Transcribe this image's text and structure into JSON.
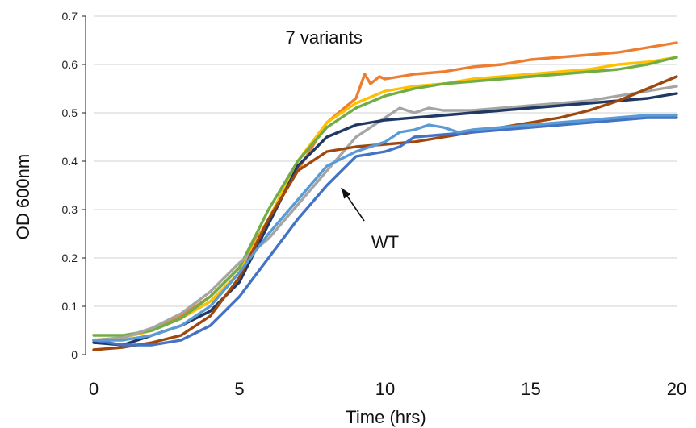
{
  "chart_data": {
    "type": "line",
    "title": "",
    "xlabel": "Time (hrs)",
    "ylabel": "OD 600nm",
    "xlim": [
      0,
      20
    ],
    "ylim": [
      0,
      0.7
    ],
    "x_ticks": [
      0,
      5,
      10,
      15,
      20
    ],
    "x_tick_labels": [
      "0",
      "5",
      "10",
      "15",
      "20"
    ],
    "y_ticks": [
      0,
      0.1,
      0.2,
      0.3,
      0.4,
      0.5,
      0.6,
      0.7
    ],
    "y_tick_labels": [
      "0",
      "0.1",
      "0.2",
      "0.3",
      "0.4",
      "0.5",
      "0.6",
      "0.7"
    ],
    "grid": true,
    "legend": "none",
    "annotations": [
      {
        "text": "7 variants",
        "x": 7.9,
        "y": 0.643
      },
      {
        "text": "WT",
        "x": 10.0,
        "y": 0.22,
        "arrow_to": [
          8.5,
          0.345
        ]
      }
    ],
    "series": [
      {
        "color": "#ED7D31",
        "points": [
          [
            0,
            0.03
          ],
          [
            1,
            0.035
          ],
          [
            2,
            0.05
          ],
          [
            3,
            0.08
          ],
          [
            4,
            0.12
          ],
          [
            5,
            0.18
          ],
          [
            6,
            0.28
          ],
          [
            7,
            0.38
          ],
          [
            8,
            0.48
          ],
          [
            9,
            0.53
          ],
          [
            9.3,
            0.58
          ],
          [
            9.5,
            0.56
          ],
          [
            9.8,
            0.575
          ],
          [
            10,
            0.57
          ],
          [
            11,
            0.58
          ],
          [
            12,
            0.585
          ],
          [
            13,
            0.595
          ],
          [
            14,
            0.6
          ],
          [
            15,
            0.61
          ],
          [
            16,
            0.615
          ],
          [
            17,
            0.62
          ],
          [
            18,
            0.625
          ],
          [
            19,
            0.635
          ],
          [
            20,
            0.645
          ]
        ]
      },
      {
        "color": "#FFC000",
        "points": [
          [
            0,
            0.03
          ],
          [
            1,
            0.035
          ],
          [
            2,
            0.05
          ],
          [
            3,
            0.075
          ],
          [
            4,
            0.11
          ],
          [
            5,
            0.17
          ],
          [
            6,
            0.28
          ],
          [
            7,
            0.4
          ],
          [
            8,
            0.48
          ],
          [
            9,
            0.52
          ],
          [
            10,
            0.545
          ],
          [
            11,
            0.555
          ],
          [
            12,
            0.56
          ],
          [
            13,
            0.57
          ],
          [
            14,
            0.575
          ],
          [
            15,
            0.58
          ],
          [
            16,
            0.585
          ],
          [
            17,
            0.59
          ],
          [
            18,
            0.6
          ],
          [
            19,
            0.605
          ],
          [
            20,
            0.615
          ]
        ]
      },
      {
        "color": "#70AD47",
        "points": [
          [
            0,
            0.04
          ],
          [
            1,
            0.04
          ],
          [
            2,
            0.05
          ],
          [
            3,
            0.075
          ],
          [
            4,
            0.12
          ],
          [
            5,
            0.18
          ],
          [
            6,
            0.3
          ],
          [
            7,
            0.4
          ],
          [
            8,
            0.47
          ],
          [
            9,
            0.51
          ],
          [
            10,
            0.535
          ],
          [
            11,
            0.55
          ],
          [
            12,
            0.56
          ],
          [
            13,
            0.565
          ],
          [
            14,
            0.57
          ],
          [
            15,
            0.575
          ],
          [
            16,
            0.58
          ],
          [
            17,
            0.585
          ],
          [
            18,
            0.59
          ],
          [
            19,
            0.6
          ],
          [
            20,
            0.615
          ]
        ]
      },
      {
        "color": "#A5A5A5",
        "points": [
          [
            0,
            0.03
          ],
          [
            1,
            0.035
          ],
          [
            2,
            0.055
          ],
          [
            3,
            0.085
          ],
          [
            4,
            0.13
          ],
          [
            5,
            0.19
          ],
          [
            6,
            0.24
          ],
          [
            7,
            0.31
          ],
          [
            8,
            0.38
          ],
          [
            9,
            0.45
          ],
          [
            10,
            0.49
          ],
          [
            10.5,
            0.51
          ],
          [
            11,
            0.5
          ],
          [
            11.5,
            0.51
          ],
          [
            12,
            0.505
          ],
          [
            13,
            0.505
          ],
          [
            14,
            0.51
          ],
          [
            15,
            0.515
          ],
          [
            16,
            0.52
          ],
          [
            17,
            0.525
          ],
          [
            18,
            0.535
          ],
          [
            19,
            0.545
          ],
          [
            20,
            0.555
          ]
        ]
      },
      {
        "color": "#203864",
        "points": [
          [
            0,
            0.025
          ],
          [
            1,
            0.02
          ],
          [
            2,
            0.04
          ],
          [
            3,
            0.06
          ],
          [
            4,
            0.09
          ],
          [
            5,
            0.15
          ],
          [
            6,
            0.27
          ],
          [
            7,
            0.39
          ],
          [
            8,
            0.45
          ],
          [
            9,
            0.475
          ],
          [
            10,
            0.485
          ],
          [
            11,
            0.49
          ],
          [
            12,
            0.495
          ],
          [
            13,
            0.5
          ],
          [
            14,
            0.505
          ],
          [
            15,
            0.51
          ],
          [
            16,
            0.515
          ],
          [
            17,
            0.52
          ],
          [
            18,
            0.525
          ],
          [
            19,
            0.53
          ],
          [
            20,
            0.54
          ]
        ]
      },
      {
        "color": "#9E480E",
        "points": [
          [
            0,
            0.01
          ],
          [
            1,
            0.015
          ],
          [
            2,
            0.025
          ],
          [
            3,
            0.04
          ],
          [
            4,
            0.08
          ],
          [
            5,
            0.16
          ],
          [
            6,
            0.28
          ],
          [
            7,
            0.38
          ],
          [
            8,
            0.42
          ],
          [
            9,
            0.43
          ],
          [
            10,
            0.435
          ],
          [
            11,
            0.44
          ],
          [
            12,
            0.45
          ],
          [
            13,
            0.46
          ],
          [
            14,
            0.47
          ],
          [
            15,
            0.48
          ],
          [
            16,
            0.49
          ],
          [
            17,
            0.505
          ],
          [
            18,
            0.525
          ],
          [
            19,
            0.55
          ],
          [
            20,
            0.575
          ]
        ]
      },
      {
        "color": "#4472C4",
        "points": [
          [
            0,
            0.03
          ],
          [
            1,
            0.02
          ],
          [
            2,
            0.02
          ],
          [
            3,
            0.03
          ],
          [
            4,
            0.06
          ],
          [
            5,
            0.12
          ],
          [
            6,
            0.2
          ],
          [
            7,
            0.28
          ],
          [
            8,
            0.35
          ],
          [
            9,
            0.41
          ],
          [
            10,
            0.42
          ],
          [
            10.5,
            0.43
          ],
          [
            11,
            0.45
          ],
          [
            12,
            0.455
          ],
          [
            13,
            0.46
          ],
          [
            14,
            0.465
          ],
          [
            15,
            0.47
          ],
          [
            16,
            0.475
          ],
          [
            17,
            0.48
          ],
          [
            18,
            0.485
          ],
          [
            19,
            0.49
          ],
          [
            20,
            0.49
          ]
        ]
      },
      {
        "color": "#5B9BD5",
        "points": [
          [
            0,
            0.03
          ],
          [
            1,
            0.03
          ],
          [
            2,
            0.04
          ],
          [
            3,
            0.06
          ],
          [
            4,
            0.1
          ],
          [
            5,
            0.17
          ],
          [
            6,
            0.25
          ],
          [
            7,
            0.32
          ],
          [
            8,
            0.39
          ],
          [
            9,
            0.42
          ],
          [
            10,
            0.44
          ],
          [
            10.5,
            0.46
          ],
          [
            11,
            0.465
          ],
          [
            11.5,
            0.475
          ],
          [
            12,
            0.47
          ],
          [
            12.5,
            0.46
          ],
          [
            13,
            0.465
          ],
          [
            14,
            0.47
          ],
          [
            15,
            0.475
          ],
          [
            16,
            0.48
          ],
          [
            17,
            0.485
          ],
          [
            18,
            0.49
          ],
          [
            19,
            0.495
          ],
          [
            20,
            0.495
          ]
        ]
      }
    ]
  }
}
